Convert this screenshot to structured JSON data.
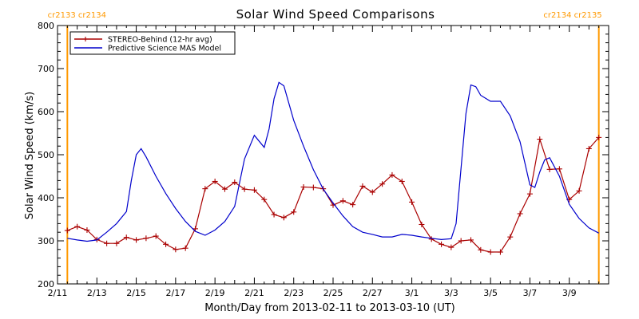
{
  "chart_data": {
    "type": "line",
    "title": "Solar Wind Speed Comparisons",
    "xlabel": "Month/Day from 2013-02-11 to 2013-03-10 (UT)",
    "ylabel": "Solar Wind Speed (km/s)",
    "ylim": [
      200,
      800
    ],
    "yticks": [
      200,
      300,
      400,
      500,
      600,
      700,
      800
    ],
    "xlim": [
      "2013-02-11",
      "2013-03-10"
    ],
    "xticks": [
      {
        "date": "2013-02-11",
        "label": "2/11"
      },
      {
        "date": "2013-02-13",
        "label": "2/13"
      },
      {
        "date": "2013-02-15",
        "label": "2/15"
      },
      {
        "date": "2013-02-17",
        "label": "2/17"
      },
      {
        "date": "2013-02-19",
        "label": "2/19"
      },
      {
        "date": "2013-02-21",
        "label": "2/21"
      },
      {
        "date": "2013-02-23",
        "label": "2/23"
      },
      {
        "date": "2013-02-25",
        "label": "2/25"
      },
      {
        "date": "2013-02-27",
        "label": "2/27"
      },
      {
        "date": "2013-03-01",
        "label": "3/1"
      },
      {
        "date": "2013-03-03",
        "label": "3/3"
      },
      {
        "date": "2013-03-05",
        "label": "3/5"
      },
      {
        "date": "2013-03-07",
        "label": "3/7"
      },
      {
        "date": "2013-03-09",
        "label": "3/9"
      }
    ],
    "legend_position": "top-left",
    "rotation_markers": [
      {
        "date": "2013-02-11 12:00",
        "label_left": "cr2133",
        "label_right": "cr2134",
        "side": "left"
      },
      {
        "date": "2013-03-10 12:00",
        "label_left": "cr2134",
        "label_right": "cr2135",
        "side": "right"
      }
    ],
    "colors": {
      "stereo": "#aa0000",
      "model": "#0000cc",
      "rotation": "#ff9900"
    },
    "series": [
      {
        "name": "STEREO-Behind (12-hr avg)",
        "marker": "plus",
        "points": [
          [
            "2013-02-11 12:00",
            324
          ],
          [
            "2013-02-12 00:00",
            333
          ],
          [
            "2013-02-12 12:00",
            325
          ],
          [
            "2013-02-13 00:00",
            303
          ],
          [
            "2013-02-13 12:00",
            294
          ],
          [
            "2013-02-14 00:00",
            294
          ],
          [
            "2013-02-14 12:00",
            308
          ],
          [
            "2013-02-15 00:00",
            302
          ],
          [
            "2013-02-15 12:00",
            306
          ],
          [
            "2013-02-16 00:00",
            311
          ],
          [
            "2013-02-16 12:00",
            292
          ],
          [
            "2013-02-17 00:00",
            280
          ],
          [
            "2013-02-17 12:00",
            283
          ],
          [
            "2013-02-18 00:00",
            328
          ],
          [
            "2013-02-18 12:00",
            421
          ],
          [
            "2013-02-19 00:00",
            438
          ],
          [
            "2013-02-19 12:00",
            420
          ],
          [
            "2013-02-20 00:00",
            436
          ],
          [
            "2013-02-20 12:00",
            420
          ],
          [
            "2013-02-21 00:00",
            418
          ],
          [
            "2013-02-21 12:00",
            396
          ],
          [
            "2013-02-22 00:00",
            361
          ],
          [
            "2013-02-22 12:00",
            354
          ],
          [
            "2013-02-23 00:00",
            367
          ],
          [
            "2013-02-23 12:00",
            425
          ],
          [
            "2013-02-24 00:00",
            424
          ],
          [
            "2013-02-24 12:00",
            421
          ],
          [
            "2013-02-25 00:00",
            383
          ],
          [
            "2013-02-25 12:00",
            393
          ],
          [
            "2013-02-26 00:00",
            384
          ],
          [
            "2013-02-26 12:00",
            427
          ],
          [
            "2013-02-27 00:00",
            413
          ],
          [
            "2013-02-27 12:00",
            432
          ],
          [
            "2013-02-28 00:00",
            453
          ],
          [
            "2013-02-28 12:00",
            438
          ],
          [
            "2013-03-01 00:00",
            390
          ],
          [
            "2013-03-01 12:00",
            338
          ],
          [
            "2013-03-02 00:00",
            304
          ],
          [
            "2013-03-02 12:00",
            292
          ],
          [
            "2013-03-03 00:00",
            285
          ],
          [
            "2013-03-03 12:00",
            300
          ],
          [
            "2013-03-04 00:00",
            302
          ],
          [
            "2013-03-04 12:00",
            279
          ],
          [
            "2013-03-05 00:00",
            274
          ],
          [
            "2013-03-05 12:00",
            274
          ],
          [
            "2013-03-06 00:00",
            309
          ],
          [
            "2013-03-06 12:00",
            363
          ],
          [
            "2013-03-07 00:00",
            409
          ],
          [
            "2013-03-07 12:00",
            536
          ],
          [
            "2013-03-08 00:00",
            466
          ],
          [
            "2013-03-08 12:00",
            467
          ],
          [
            "2013-03-09 00:00",
            396
          ],
          [
            "2013-03-09 12:00",
            416
          ],
          [
            "2013-03-10 00:00",
            514
          ],
          [
            "2013-03-10 12:00",
            540
          ]
        ]
      },
      {
        "name": "Predictive Science MAS Model",
        "marker": "none",
        "points": [
          [
            "2013-02-11 12:00",
            306
          ],
          [
            "2013-02-12 00:00",
            302
          ],
          [
            "2013-02-12 12:00",
            299
          ],
          [
            "2013-02-13 00:00",
            302
          ],
          [
            "2013-02-13 12:00",
            320
          ],
          [
            "2013-02-14 00:00",
            340
          ],
          [
            "2013-02-14 12:00",
            368
          ],
          [
            "2013-02-14 18:00",
            440
          ],
          [
            "2013-02-15 00:00",
            500
          ],
          [
            "2013-02-15 06:00",
            514
          ],
          [
            "2013-02-15 12:00",
            495
          ],
          [
            "2013-02-16 00:00",
            450
          ],
          [
            "2013-02-16 12:00",
            410
          ],
          [
            "2013-02-17 00:00",
            375
          ],
          [
            "2013-02-17 12:00",
            345
          ],
          [
            "2013-02-18 00:00",
            322
          ],
          [
            "2013-02-18 12:00",
            313
          ],
          [
            "2013-02-19 00:00",
            325
          ],
          [
            "2013-02-19 12:00",
            345
          ],
          [
            "2013-02-20 00:00",
            380
          ],
          [
            "2013-02-20 12:00",
            490
          ],
          [
            "2013-02-21 00:00",
            545
          ],
          [
            "2013-02-21 12:00",
            517
          ],
          [
            "2013-02-21 18:00",
            560
          ],
          [
            "2013-02-22 00:00",
            630
          ],
          [
            "2013-02-22 06:00",
            668
          ],
          [
            "2013-02-22 12:00",
            660
          ],
          [
            "2013-02-23 00:00",
            580
          ],
          [
            "2013-02-23 12:00",
            520
          ],
          [
            "2013-02-24 00:00",
            465
          ],
          [
            "2013-02-24 12:00",
            420
          ],
          [
            "2013-02-25 00:00",
            388
          ],
          [
            "2013-02-25 12:00",
            358
          ],
          [
            "2013-02-26 00:00",
            333
          ],
          [
            "2013-02-26 12:00",
            320
          ],
          [
            "2013-02-27 00:00",
            315
          ],
          [
            "2013-02-27 12:00",
            309
          ],
          [
            "2013-02-28 00:00",
            309
          ],
          [
            "2013-02-28 12:00",
            315
          ],
          [
            "2013-03-01 00:00",
            313
          ],
          [
            "2013-03-01 12:00",
            309
          ],
          [
            "2013-03-02 00:00",
            306
          ],
          [
            "2013-03-02 12:00",
            303
          ],
          [
            "2013-03-03 00:00",
            305
          ],
          [
            "2013-03-03 06:00",
            340
          ],
          [
            "2013-03-03 18:00",
            595
          ],
          [
            "2013-03-04 00:00",
            662
          ],
          [
            "2013-03-04 06:00",
            658
          ],
          [
            "2013-03-04 12:00",
            638
          ],
          [
            "2013-03-05 00:00",
            624
          ],
          [
            "2013-03-05 12:00",
            624
          ],
          [
            "2013-03-06 00:00",
            590
          ],
          [
            "2013-03-06 12:00",
            530
          ],
          [
            "2013-03-07 00:00",
            430
          ],
          [
            "2013-03-07 06:00",
            424
          ],
          [
            "2013-03-07 12:00",
            460
          ],
          [
            "2013-03-07 18:00",
            488
          ],
          [
            "2013-03-08 00:00",
            493
          ],
          [
            "2013-03-08 12:00",
            450
          ],
          [
            "2013-03-09 00:00",
            385
          ],
          [
            "2013-03-09 12:00",
            352
          ],
          [
            "2013-03-10 00:00",
            330
          ],
          [
            "2013-03-10 12:00",
            318
          ]
        ]
      }
    ]
  }
}
